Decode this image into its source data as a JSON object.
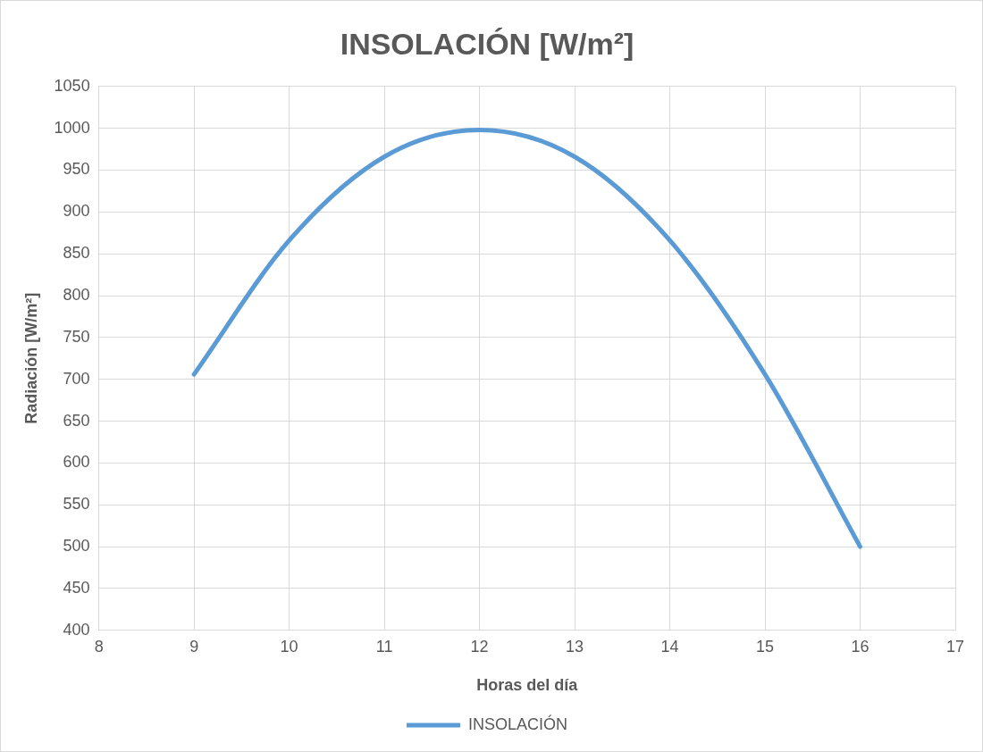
{
  "chart_data": {
    "type": "line",
    "title": "INSOLACIÓN [W/m²]",
    "xlabel": "Horas del día",
    "ylabel": "Radiación [W/m²]",
    "x": [
      9,
      10,
      11,
      12,
      13,
      14,
      15,
      16
    ],
    "series": [
      {
        "name": "INSOLACIÓN",
        "color": "#5b9bd5",
        "values": [
          706,
          866,
          966,
          998,
          966,
          866,
          706,
          500
        ]
      }
    ],
    "xlim": [
      8,
      17
    ],
    "xticks": [
      8,
      9,
      10,
      11,
      12,
      13,
      14,
      15,
      16,
      17
    ],
    "ylim": [
      400,
      1050
    ],
    "yticks": [
      400,
      450,
      500,
      550,
      600,
      650,
      700,
      750,
      800,
      850,
      900,
      950,
      1000,
      1050
    ],
    "grid": true,
    "legend": "bottom",
    "marker": "none",
    "line_style": "solid"
  }
}
